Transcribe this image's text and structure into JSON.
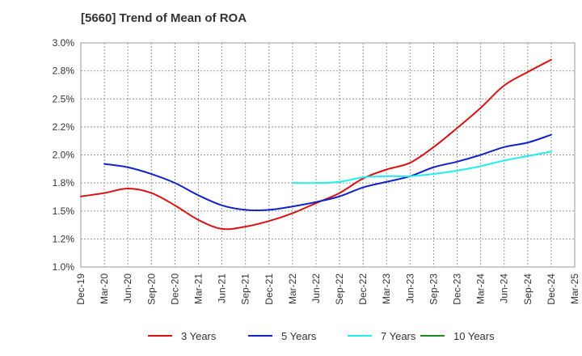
{
  "chart_data": {
    "type": "line",
    "title": "[5660]  Trend of Mean of ROA",
    "xlabel": "",
    "ylabel": "",
    "ylim": [
      1.0,
      3.0
    ],
    "y_ticks": [
      "3.0%",
      "2.8%",
      "2.5%",
      "2.2%",
      "2.0%",
      "1.8%",
      "1.5%",
      "1.2%",
      "1.0%"
    ],
    "y_tick_values": [
      3.0,
      2.75,
      2.5,
      2.25,
      2.0,
      1.75,
      1.5,
      1.25,
      1.0
    ],
    "categories": [
      "Dec-19",
      "Mar-20",
      "Jun-20",
      "Sep-20",
      "Dec-20",
      "Mar-21",
      "Jun-21",
      "Sep-21",
      "Dec-21",
      "Mar-22",
      "Jun-22",
      "Sep-22",
      "Dec-22",
      "Mar-23",
      "Jun-23",
      "Sep-23",
      "Dec-23",
      "Mar-24",
      "Jun-24",
      "Sep-24",
      "Dec-24",
      "Mar-25"
    ],
    "grid": true,
    "legend_position": "bottom",
    "series": [
      {
        "name": "3 Years",
        "color": "#dd1111",
        "values": [
          1.63,
          1.66,
          1.7,
          1.66,
          1.55,
          1.42,
          1.34,
          1.36,
          1.41,
          1.48,
          1.57,
          1.66,
          1.79,
          1.87,
          1.93,
          2.07,
          2.24,
          2.42,
          2.62,
          2.74,
          2.85,
          null
        ]
      },
      {
        "name": "5 Years",
        "color": "#1122cc",
        "values": [
          null,
          1.92,
          1.89,
          1.83,
          1.75,
          1.64,
          1.55,
          1.51,
          1.51,
          1.54,
          1.58,
          1.63,
          1.71,
          1.76,
          1.81,
          1.89,
          1.94,
          2.0,
          2.07,
          2.11,
          2.18,
          null
        ]
      },
      {
        "name": "7 Years",
        "color": "#22eeee",
        "values": [
          null,
          null,
          null,
          null,
          null,
          null,
          null,
          null,
          null,
          1.75,
          1.75,
          1.76,
          1.8,
          1.81,
          1.81,
          1.83,
          1.86,
          1.9,
          1.95,
          1.99,
          2.03,
          null
        ]
      },
      {
        "name": "10 Years",
        "color": "#228822",
        "values": [
          null,
          null,
          null,
          null,
          null,
          null,
          null,
          null,
          null,
          null,
          null,
          null,
          null,
          null,
          null,
          null,
          null,
          null,
          null,
          null,
          null,
          null
        ]
      }
    ]
  }
}
